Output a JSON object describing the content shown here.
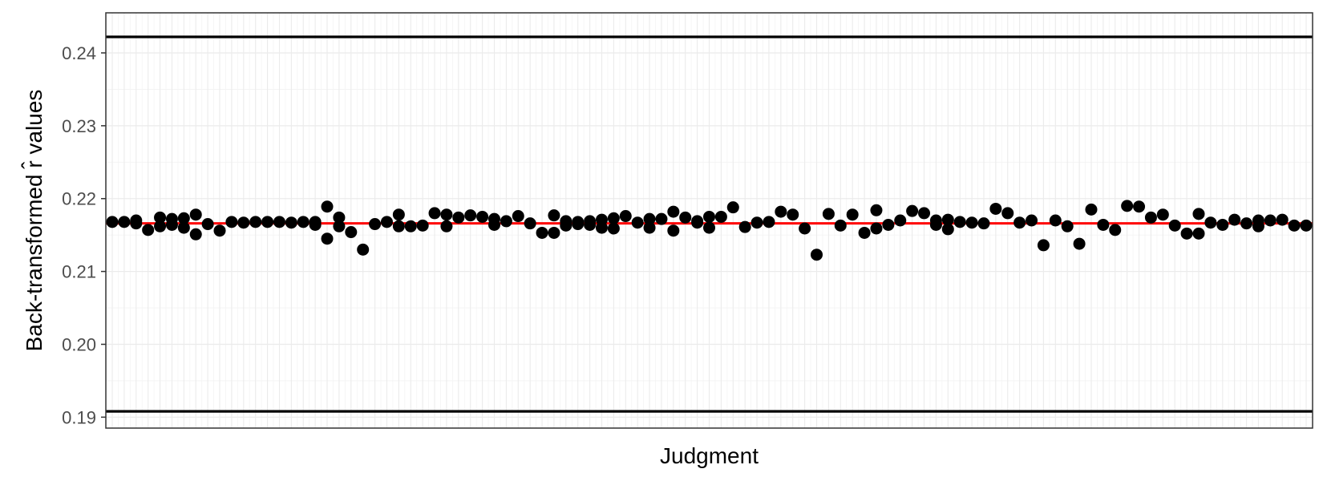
{
  "chart_data": {
    "type": "scatter",
    "title": "",
    "xlabel": "Judgment",
    "ylabel": "Back-transformed r̂ values",
    "ylim": [
      0.1885,
      0.2455
    ],
    "yticks": [
      "0.19",
      "0.20",
      "0.21",
      "0.22",
      "0.23",
      "0.24"
    ],
    "ytick_values": [
      0.19,
      0.2,
      0.21,
      0.22,
      0.23,
      0.24
    ],
    "x_tick_labels_shown": false,
    "grid": true,
    "legend": "none",
    "reference_lines": [
      {
        "kind": "mean",
        "value": 0.2166,
        "color": "#ff0000"
      },
      {
        "kind": "upper-bound",
        "value": 0.2422,
        "color": "#000000"
      },
      {
        "kind": "lower-bound",
        "value": 0.1908,
        "color": "#000000"
      }
    ],
    "point_color": "#000000",
    "series": [
      {
        "x": [
          1,
          2,
          3,
          4,
          5,
          6,
          7,
          8,
          9,
          10,
          11,
          12,
          13,
          14,
          15,
          16,
          17,
          18,
          19,
          20,
          21,
          22,
          23,
          24,
          25,
          26,
          27,
          28,
          29,
          30,
          31,
          32,
          33,
          34,
          35,
          36,
          37,
          38,
          39,
          40,
          41,
          42,
          43,
          44,
          45,
          46,
          47,
          48,
          49,
          50,
          51,
          52,
          53,
          54,
          55,
          56,
          57,
          58,
          59,
          60,
          61,
          62,
          63,
          64,
          65,
          66,
          67,
          68,
          69,
          70,
          71,
          72,
          73,
          74,
          75,
          76,
          77,
          78,
          79,
          80,
          81,
          82,
          83,
          84,
          85,
          86,
          87,
          88,
          89,
          90,
          91,
          92,
          93,
          94,
          95,
          96,
          97,
          98,
          99,
          100,
          101
        ],
        "y": [
          [
            0.2168
          ],
          [
            0.2168
          ],
          [
            0.217,
            0.2166
          ],
          [
            0.2157
          ],
          [
            0.2174,
            0.2162
          ],
          [
            0.2172,
            0.2164
          ],
          [
            0.2173,
            0.216
          ],
          [
            0.2178,
            0.2151
          ],
          [
            0.2165
          ],
          [
            0.2156
          ],
          [
            0.2168
          ],
          [
            0.2167
          ],
          [
            0.2168
          ],
          [
            0.2168
          ],
          [
            0.2168
          ],
          [
            0.2167
          ],
          [
            0.2168
          ],
          [
            0.2168,
            0.2164
          ],
          [
            0.2189,
            0.2145
          ],
          [
            0.2174,
            0.2162
          ],
          [
            0.2154
          ],
          [
            0.213
          ],
          [
            0.2165
          ],
          [
            0.2168
          ],
          [
            0.2178,
            0.2162
          ],
          [
            0.2162
          ],
          [
            0.2163
          ],
          [
            0.218
          ],
          [
            0.2178,
            0.2162
          ],
          [
            0.2174
          ],
          [
            0.2177
          ],
          [
            0.2175
          ],
          [
            0.2172,
            0.2164
          ],
          [
            0.2169
          ],
          [
            0.2176
          ],
          [
            0.2166
          ],
          [
            0.2153
          ],
          [
            0.2177,
            0.2153
          ],
          [
            0.2169,
            0.2163
          ],
          [
            0.2168,
            0.2165
          ],
          [
            0.2169,
            0.2164
          ],
          [
            0.2171,
            0.216
          ],
          [
            0.2173,
            0.2159
          ],
          [
            0.2176
          ],
          [
            0.2167
          ],
          [
            0.2172,
            0.216
          ],
          [
            0.2172
          ],
          [
            0.2182,
            0.2156
          ],
          [
            0.2174
          ],
          [
            0.2169,
            0.2167
          ],
          [
            0.2175,
            0.216
          ],
          [
            0.2175
          ],
          [
            0.2188
          ],
          [
            0.2161
          ],
          [
            0.2167
          ],
          [
            0.2168
          ],
          [
            0.2182
          ],
          [
            0.2178
          ],
          [
            0.2159
          ],
          [
            0.2123
          ],
          [
            0.2179
          ],
          [
            0.2163
          ],
          [
            0.2178
          ],
          [
            0.2153
          ],
          [
            0.2184,
            0.2159
          ],
          [
            0.2164
          ],
          [
            0.217
          ],
          [
            0.2183
          ],
          [
            0.218
          ],
          [
            0.217,
            0.2164
          ],
          [
            0.2171,
            0.2158
          ],
          [
            0.2168
          ],
          [
            0.2167
          ],
          [
            0.2166
          ],
          [
            0.2186
          ],
          [
            0.218
          ],
          [
            0.2167
          ],
          [
            0.217
          ],
          [
            0.2136
          ],
          [
            0.217
          ],
          [
            0.2162
          ],
          [
            0.2138
          ],
          [
            0.2185
          ],
          [
            0.2164
          ],
          [
            0.2157
          ],
          [
            0.219
          ],
          [
            0.2189
          ],
          [
            0.2174
          ],
          [
            0.2178
          ],
          [
            0.2163
          ],
          [
            0.2152
          ],
          [
            0.2179,
            0.2152
          ],
          [
            0.2167
          ],
          [
            0.2164
          ],
          [
            0.2171
          ],
          [
            0.2166
          ],
          [
            0.217,
            0.2162
          ],
          [
            0.217
          ],
          [
            0.2171
          ],
          [
            0.2163
          ],
          [
            0.2163
          ]
        ]
      }
    ]
  }
}
